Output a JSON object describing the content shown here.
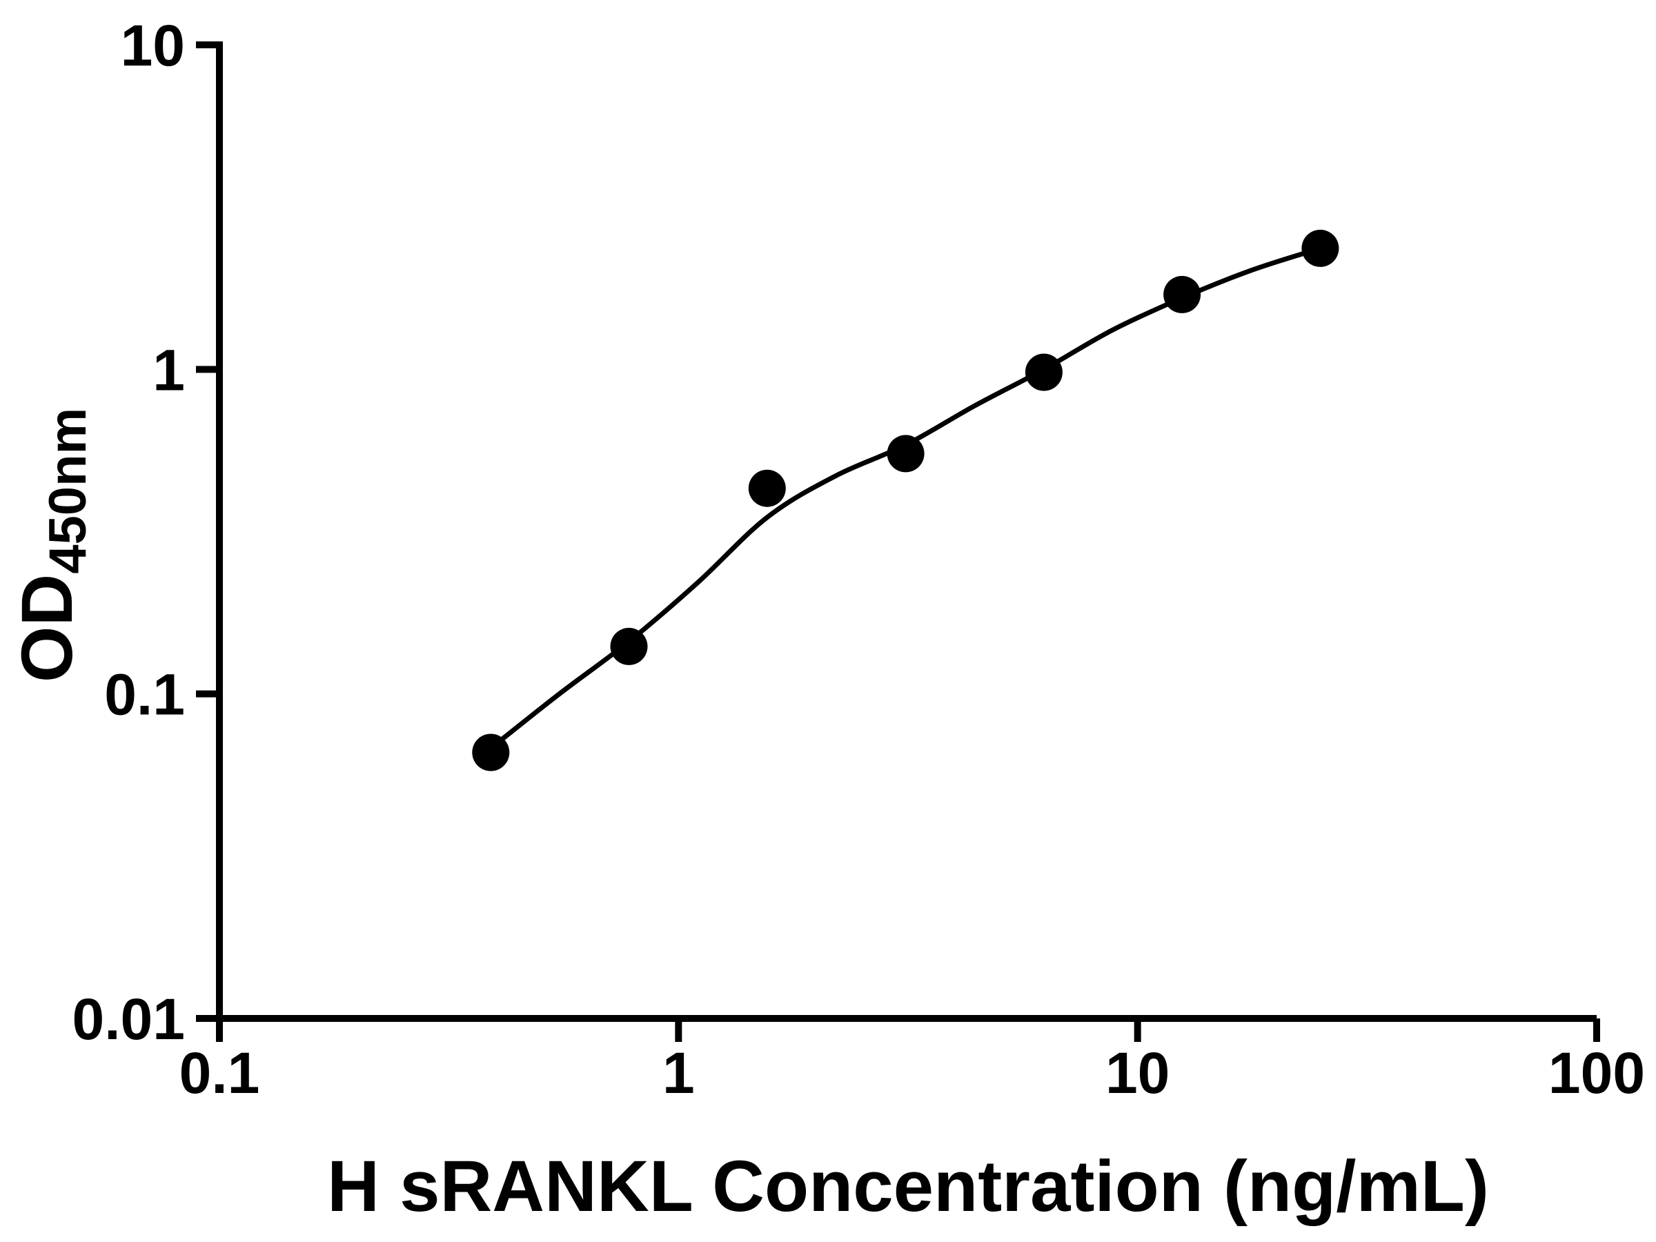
{
  "chart_data": {
    "type": "scatter",
    "title": "",
    "xlabel": "H sRANKL Concentration (ng/mL)",
    "ylabel_main": "OD",
    "ylabel_sub": "450nm",
    "x_scale": "log",
    "y_scale": "log",
    "xlim": [
      0.1,
      100
    ],
    "ylim": [
      0.01,
      10
    ],
    "x_ticks": [
      "0.1",
      "1",
      "10",
      "100"
    ],
    "y_ticks": [
      "0.01",
      "0.1",
      "1",
      "10"
    ],
    "grid": false,
    "legend": null,
    "marker_color": "#000000",
    "line_color": "#000000",
    "axis_color": "#000000",
    "background_color": "#ffffff",
    "points": [
      [
        0.39,
        0.066
      ],
      [
        0.78,
        0.14
      ],
      [
        1.56,
        0.43
      ],
      [
        3.125,
        0.55
      ],
      [
        6.25,
        0.98
      ],
      [
        12.5,
        1.7
      ],
      [
        25,
        2.36
      ]
    ],
    "fit_curve": [
      [
        0.39,
        0.068
      ],
      [
        0.55,
        0.1
      ],
      [
        0.78,
        0.145
      ],
      [
        1.1,
        0.22
      ],
      [
        1.56,
        0.35
      ],
      [
        2.2,
        0.47
      ],
      [
        3.125,
        0.585
      ],
      [
        4.4,
        0.77
      ],
      [
        6.25,
        1.0
      ],
      [
        8.8,
        1.32
      ],
      [
        12.5,
        1.66
      ],
      [
        17.7,
        2.02
      ],
      [
        25,
        2.36
      ]
    ]
  }
}
